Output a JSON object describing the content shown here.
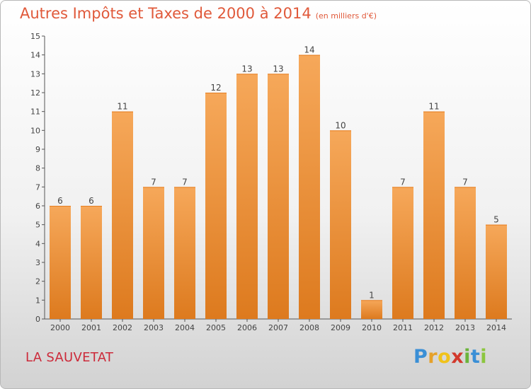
{
  "title": "Autres Impôts et Taxes de 2000 à 2014",
  "unit_note": "(en milliers d'€)",
  "commune": "LA SAUVETAT",
  "logo_text": "Proxiti",
  "chart_data": {
    "type": "bar",
    "title": "Autres Impôts et Taxes de 2000 à 2014",
    "subtitle": "(en milliers d'€)",
    "xlabel": "",
    "ylabel": "",
    "categories": [
      "2000",
      "2001",
      "2002",
      "2003",
      "2004",
      "2005",
      "2006",
      "2007",
      "2008",
      "2009",
      "2010",
      "2011",
      "2012",
      "2013",
      "2014"
    ],
    "values": [
      6,
      6,
      11,
      7,
      7,
      12,
      13,
      13,
      14,
      10,
      1,
      7,
      11,
      7,
      5
    ],
    "data_labels": [
      "6",
      "6",
      "11",
      "7",
      "7",
      "12",
      "13",
      "13",
      "14",
      "10",
      "1",
      "7",
      "11",
      "7",
      "5"
    ],
    "ylim": [
      0,
      15
    ],
    "yticks": [
      0,
      1,
      2,
      3,
      4,
      5,
      6,
      7,
      8,
      9,
      10,
      11,
      12,
      13,
      14,
      15
    ],
    "grid": false,
    "legend": "none",
    "colors": {
      "bar_top": "#f6a85a",
      "bar_bottom": "#dd7a1e",
      "axis": "#555555",
      "text": "#444444"
    }
  }
}
